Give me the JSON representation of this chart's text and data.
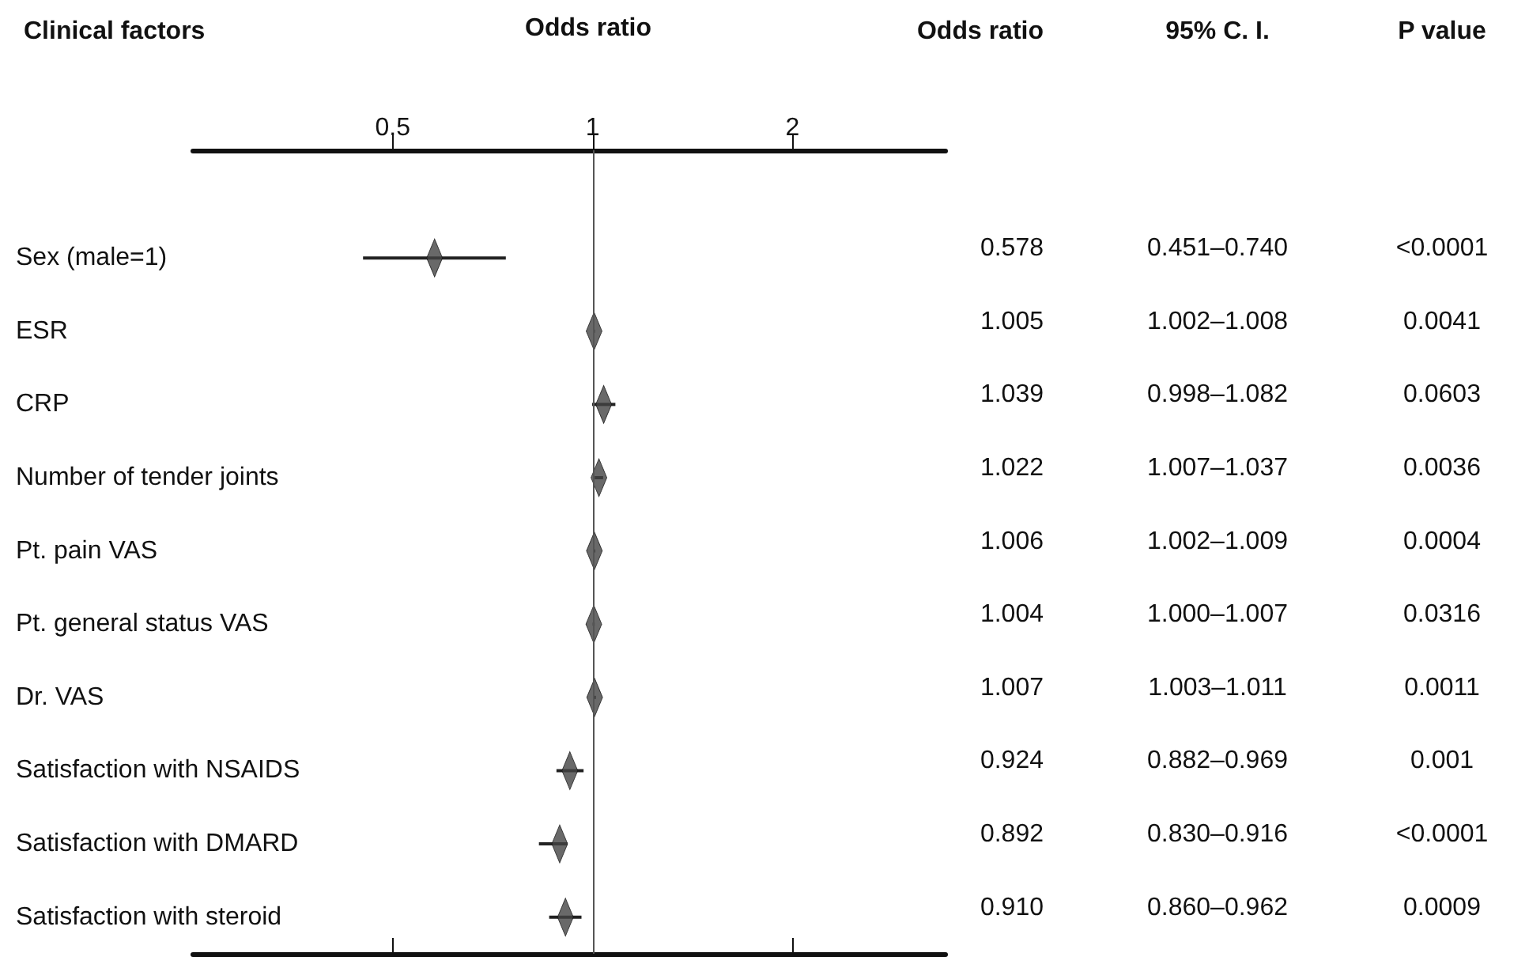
{
  "chart_data": {
    "type": "scatter",
    "orientation": "horizontal",
    "ylabel": "Clinical factors",
    "xlabel": "Odds ratio",
    "categories": [
      "Sex (male=1)",
      "ESR",
      "CRP",
      "Number of tender joints",
      "Pt. pain VAS",
      "Pt. general status VAS",
      "Dr. VAS",
      "Satisfaction with NSAIDS",
      "Satisfaction with DMARD",
      "Satisfaction with steroid"
    ],
    "series": [
      {
        "color": "#444444",
        "values": [
          0.578,
          1.005,
          1.039,
          1.022,
          1.006,
          1.004,
          1.007,
          0.924,
          0.892,
          0.91
        ],
        "value_labels": [
          "0.578",
          "1.005",
          "1.039",
          "1.022",
          "1.006",
          "1.004",
          "1.007",
          "0.924",
          "0.892",
          "0.910"
        ],
        "errors": [
          [
            0.451,
            0.74
          ],
          [
            1.002,
            1.008
          ],
          [
            0.998,
            1.082
          ],
          [
            1.007,
            1.037
          ],
          [
            1.002,
            1.009
          ],
          [
            1.0,
            1.007
          ],
          [
            1.003,
            1.011
          ],
          [
            0.882,
            0.969
          ],
          [
            0.83,
            0.916
          ],
          [
            0.86,
            0.962
          ]
        ]
      }
    ],
    "marker": "diamond",
    "log": "x",
    "xlim": [
      0.25,
      3.4
    ],
    "xticks": [
      0.5,
      1,
      2
    ],
    "grid": false,
    "ref_lines": [
      {
        "axis": "x",
        "value": 1,
        "color": "#555555"
      }
    ],
    "annotations": [
      "Odds ratio",
      "95% C. I.",
      "P value",
      "0.451–0.740",
      "<0.0001",
      "1.002–1.008",
      "0.0041",
      "0.998–1.082",
      "0.0603",
      "1.007–1.037",
      "0.0036",
      "1.002–1.009",
      "0.0004",
      "1.000–1.007",
      "0.0316",
      "1.003–1.011",
      "0.0011",
      "0.882–0.969",
      "0.001",
      "0.830–0.916",
      "<0.0001",
      "0.860–0.962",
      "0.0009"
    ]
  }
}
